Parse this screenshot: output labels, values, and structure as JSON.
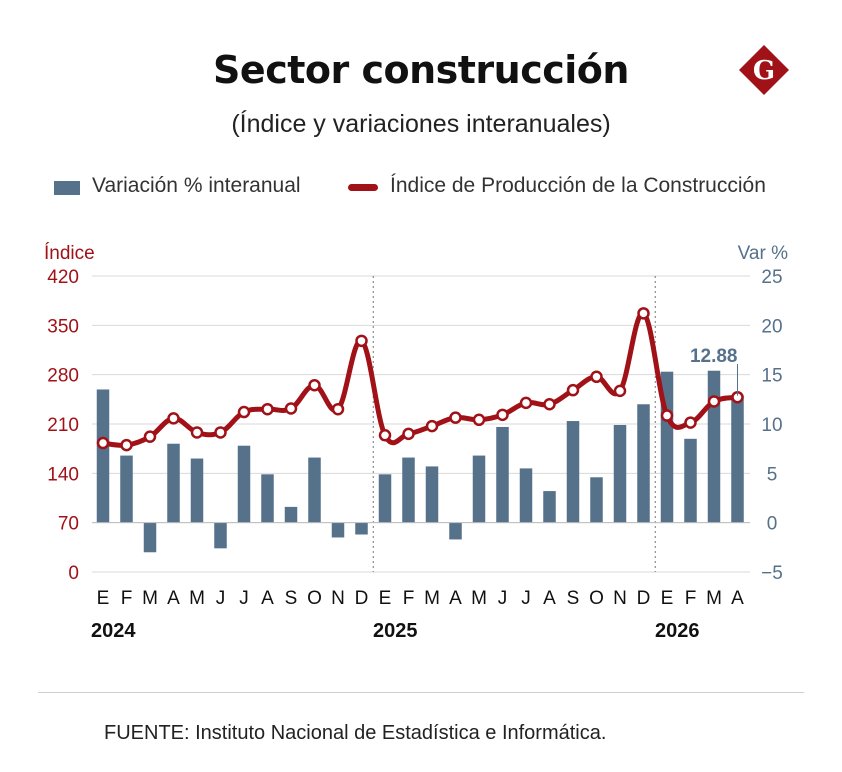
{
  "title": "Sector construcción",
  "subtitle": "(Índice y variaciones interanuales)",
  "logo": {
    "letter": "G",
    "color": "#a01218"
  },
  "legend": {
    "bar_label": "Variación % interanual",
    "line_label": "Índice de Producción de la Construcción"
  },
  "source": "FUENTE: Instituto Nacional de Estadística e Informática.",
  "colors": {
    "bars": "#56718a",
    "line": "#a01218",
    "left_axis": "#a01218",
    "right_axis": "#56718a"
  },
  "chart_data": {
    "type": "bar+line",
    "categories": [
      "E",
      "F",
      "M",
      "A",
      "M",
      "J",
      "J",
      "A",
      "S",
      "O",
      "N",
      "D",
      "E",
      "F",
      "M",
      "A",
      "M",
      "J",
      "J",
      "A",
      "S",
      "O",
      "N",
      "D",
      "E",
      "F",
      "M",
      "A"
    ],
    "years": [
      {
        "label": "2024",
        "start_index": 0
      },
      {
        "label": "2025",
        "start_index": 12
      },
      {
        "label": "2026",
        "start_index": 24
      }
    ],
    "left_axis": {
      "title": "Índice",
      "min": 0,
      "max": 420,
      "ticks": [
        0,
        70,
        140,
        210,
        280,
        350,
        420
      ]
    },
    "right_axis": {
      "title": "Var %",
      "min": -5,
      "max": 25,
      "ticks": [
        -5,
        0,
        5,
        10,
        15,
        20,
        25
      ]
    },
    "series": [
      {
        "name": "Variación % interanual",
        "type": "bar",
        "axis": "right",
        "values": [
          13.5,
          6.8,
          -3.0,
          8.0,
          6.5,
          -2.6,
          7.8,
          4.9,
          1.6,
          6.6,
          -1.5,
          -1.2,
          4.9,
          6.6,
          5.7,
          -1.7,
          6.8,
          9.7,
          5.5,
          3.2,
          10.3,
          4.6,
          9.9,
          12.0,
          15.3,
          8.5,
          15.4,
          12.88
        ]
      },
      {
        "name": "Índice de Producción de la Construcción",
        "type": "line",
        "axis": "left",
        "values": [
          183,
          180,
          192,
          218,
          198,
          198,
          227,
          231,
          232,
          265,
          231,
          328,
          194,
          196,
          207,
          219,
          216,
          223,
          240,
          238,
          258,
          277,
          257,
          367,
          222,
          212,
          242,
          248
        ]
      }
    ],
    "annotation": {
      "index": 27,
      "text": "12.88"
    },
    "grid": true,
    "legend_position": "top"
  }
}
